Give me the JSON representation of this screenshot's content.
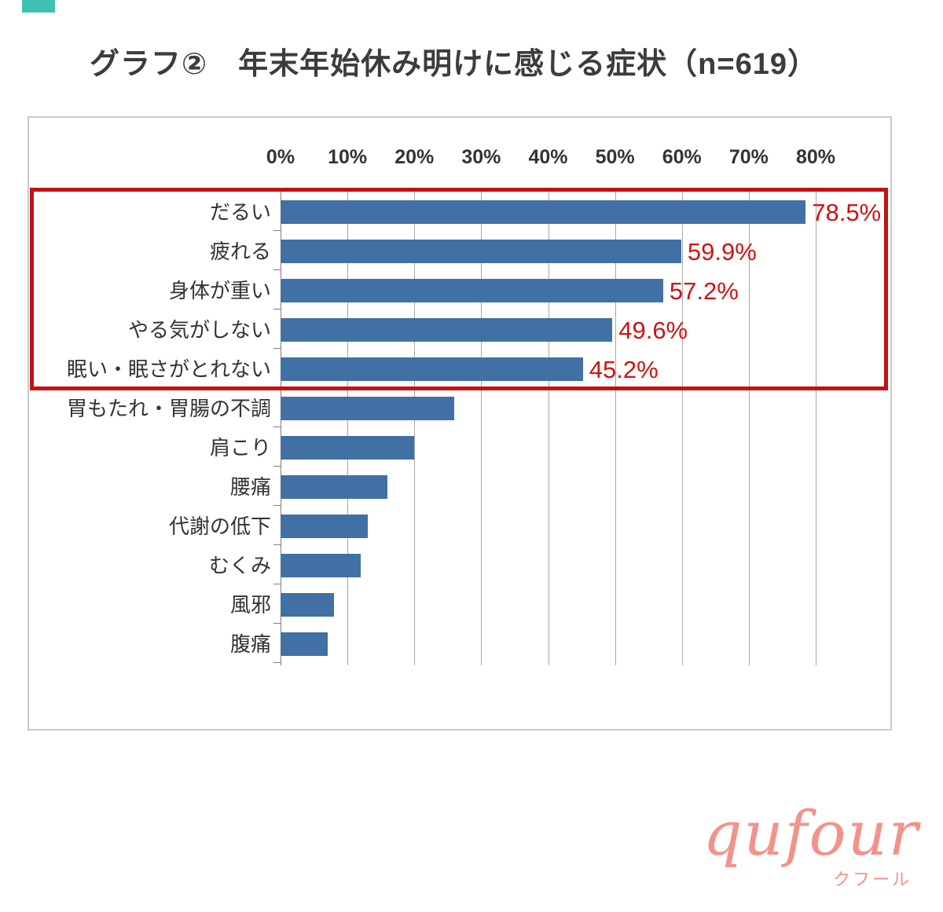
{
  "page": {
    "title": "グラフ②　年末年始休み明けに感じる症状（n=619）"
  },
  "chart_data": {
    "type": "bar",
    "orientation": "horizontal",
    "title": "グラフ②　年末年始休み明けに感じる症状（n=619）",
    "sample_size": "n=619",
    "xlim": [
      0,
      80
    ],
    "x_ticks": [
      "0%",
      "10%",
      "20%",
      "30%",
      "40%",
      "50%",
      "60%",
      "70%",
      "80%"
    ],
    "grid": true,
    "categories": [
      "だるい",
      "疲れる",
      "身体が重い",
      "やる気がしない",
      "眠い・眠さがとれない",
      "胃もたれ・胃腸の不調",
      "肩こり",
      "腰痛",
      "代謝の低下",
      "むくみ",
      "風邪",
      "腹痛"
    ],
    "values": [
      78.5,
      59.9,
      57.2,
      49.6,
      45.2,
      26.0,
      20.0,
      16.0,
      13.0,
      12.0,
      8.0,
      7.0
    ],
    "data_labels": [
      "78.5%",
      "59.9%",
      "57.2%",
      "49.6%",
      "45.2%",
      "",
      "",
      "",
      "",
      "",
      "",
      ""
    ],
    "highlight_count": 5,
    "bar_color": "#4170a4",
    "highlight_box_color": "#c31212",
    "data_label_color": "#d01212"
  },
  "logo": {
    "name": "qufour",
    "subtitle": "クフール",
    "color": "#f2938b"
  }
}
